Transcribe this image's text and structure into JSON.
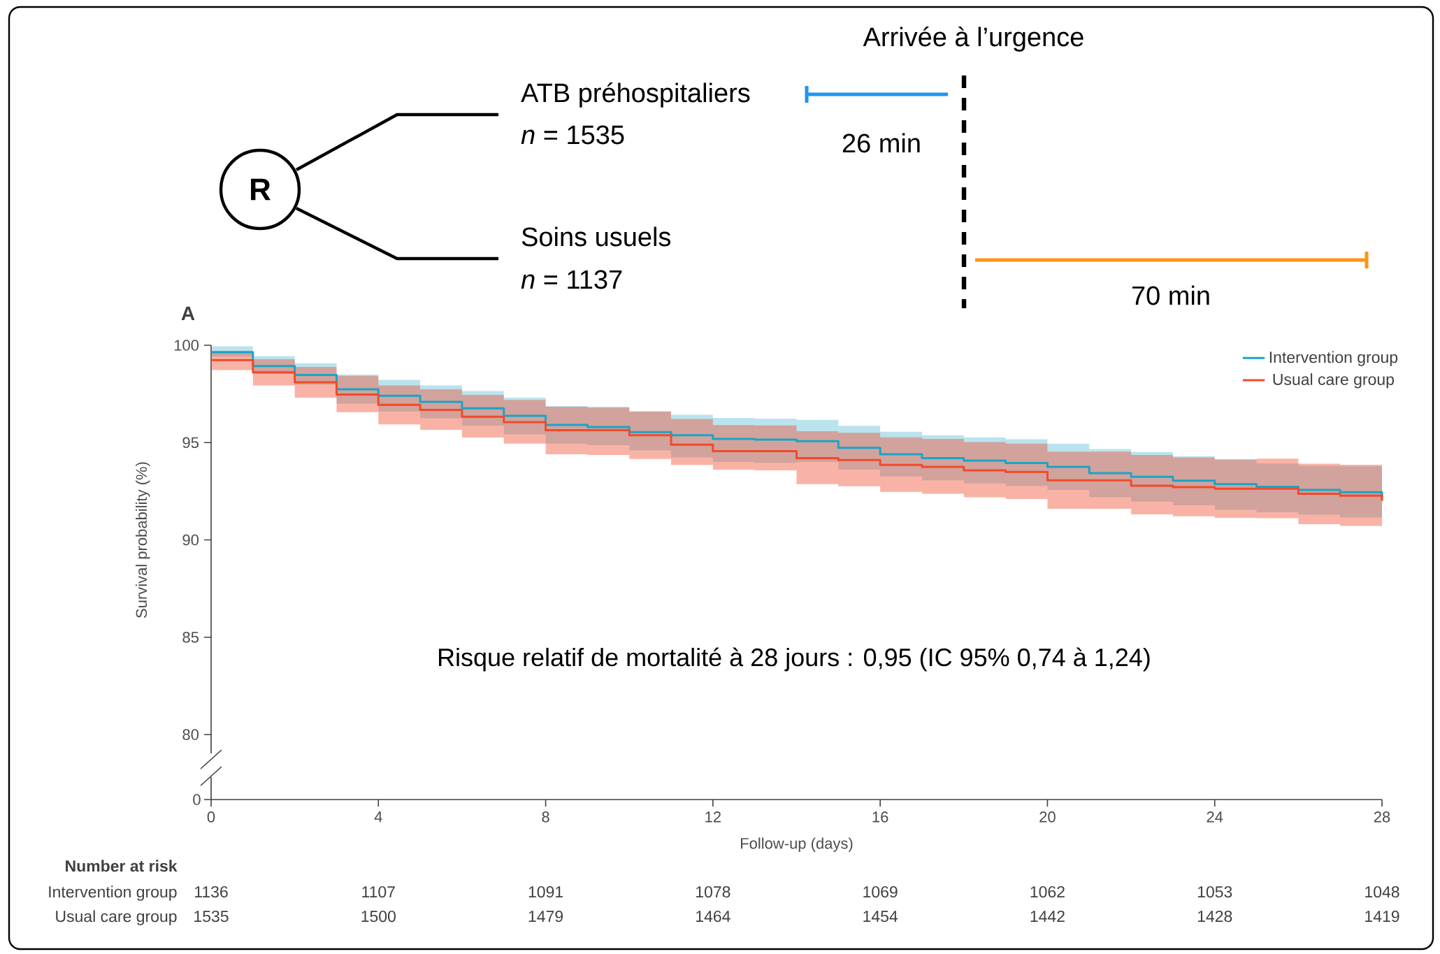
{
  "chart_data": {
    "type": "step",
    "xlabel": "Follow-up (days)",
    "ylabel": "Survival probability (%)",
    "x": [
      0,
      1,
      2,
      3,
      4,
      5,
      6,
      7,
      8,
      9,
      10,
      11,
      12,
      13,
      14,
      15,
      16,
      17,
      18,
      19,
      20,
      21,
      22,
      23,
      24,
      25,
      26,
      27,
      28
    ],
    "series": [
      {
        "name": "Intervention group",
        "color": "#1ba3c6",
        "values": [
          99.64,
          98.93,
          98.47,
          97.74,
          97.41,
          97.09,
          96.76,
          96.37,
          95.91,
          95.8,
          95.54,
          95.38,
          95.19,
          95.15,
          95.07,
          94.73,
          94.4,
          94.2,
          94.08,
          93.95,
          93.75,
          93.43,
          93.24,
          93.04,
          92.86,
          92.73,
          92.57,
          92.45,
          92.23
        ],
        "upper": [
          99.95,
          99.44,
          99.08,
          98.49,
          98.22,
          97.94,
          97.65,
          97.31,
          96.88,
          96.84,
          96.6,
          96.43,
          96.27,
          96.23,
          96.17,
          95.86,
          95.56,
          95.38,
          95.27,
          95.17,
          94.95,
          94.67,
          94.52,
          94.3,
          94.16,
          93.93,
          93.81,
          93.78,
          93.78
        ],
        "lower": [
          99.42,
          98.53,
          97.98,
          97.0,
          96.6,
          96.25,
          95.86,
          95.42,
          94.95,
          94.87,
          94.6,
          94.24,
          94.0,
          93.96,
          94.0,
          93.61,
          93.26,
          93.06,
          92.9,
          92.77,
          92.57,
          92.19,
          91.97,
          91.78,
          91.54,
          91.42,
          91.3,
          91.15,
          91.15
        ]
      },
      {
        "name": "Usual care group",
        "color": "#f04a2b",
        "values": [
          99.24,
          98.61,
          98.1,
          97.47,
          96.94,
          96.68,
          96.33,
          96.05,
          95.64,
          95.64,
          95.38,
          94.89,
          94.56,
          94.56,
          94.2,
          94.1,
          93.85,
          93.75,
          93.57,
          93.49,
          93.06,
          93.06,
          92.78,
          92.71,
          92.63,
          92.63,
          92.37,
          92.27,
          92.0
        ],
        "upper": [
          99.71,
          99.28,
          98.89,
          98.43,
          97.94,
          97.74,
          97.45,
          97.19,
          96.84,
          96.8,
          96.6,
          96.21,
          95.9,
          95.88,
          95.58,
          95.5,
          95.27,
          95.19,
          95.03,
          94.95,
          94.53,
          94.53,
          94.36,
          94.24,
          94.12,
          94.17,
          93.91,
          93.86,
          93.86
        ],
        "lower": [
          98.73,
          97.94,
          97.31,
          96.56,
          95.93,
          95.66,
          95.26,
          94.95,
          94.4,
          94.36,
          94.16,
          93.85,
          93.61,
          93.57,
          92.86,
          92.76,
          92.47,
          92.37,
          92.19,
          92.1,
          91.6,
          91.6,
          91.31,
          91.21,
          91.13,
          91.11,
          90.81,
          90.72,
          90.72
        ]
      }
    ],
    "xlim": [
      0,
      28
    ],
    "xticks": [
      0,
      4,
      8,
      12,
      16,
      20,
      24,
      28
    ],
    "ylim": [
      80,
      100
    ],
    "yticks": [
      80,
      85,
      90,
      95,
      100
    ],
    "legend": "top right",
    "annotations": [
      "Arrivée à l’urgence",
      "ATB préhospitaliers",
      "*n* = 1535",
      "26 min",
      "Soins usuels",
      "*n* = 1137",
      "70 min",
      "R",
      "A",
      "Risque relatif de mortalité à 28 jours : 0,95 (IC 95% 0,74 à 1,24)",
      "0",
      "Number at risk",
      "Intervention group",
      "Usual care group",
      "1136",
      "1107",
      "1091",
      "1078",
      "1069",
      "1062",
      "1053",
      "1048",
      "1535",
      "1500",
      "1479",
      "1464",
      "1454",
      "1442",
      "1428",
      "1419"
    ]
  }
}
